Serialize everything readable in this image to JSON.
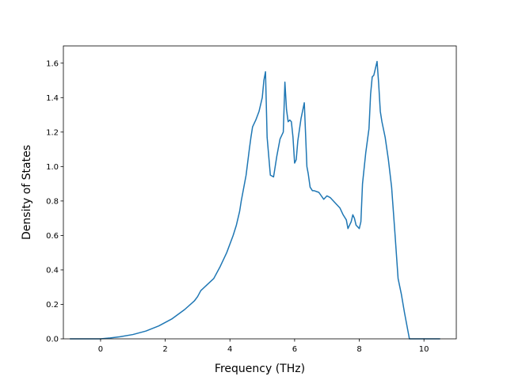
{
  "chart_data": {
    "type": "line",
    "title": "",
    "xlabel": "Frequency (THz)",
    "ylabel": "Density of States",
    "xlim": [
      -1.15,
      11.0
    ],
    "ylim": [
      0,
      1.7
    ],
    "xticks": [
      0,
      2,
      4,
      6,
      8,
      10
    ],
    "yticks": [
      0.0,
      0.2,
      0.4,
      0.6,
      0.8,
      1.0,
      1.2,
      1.4,
      1.6
    ],
    "xtick_labels": [
      "0",
      "2",
      "4",
      "6",
      "8",
      "10"
    ],
    "ytick_labels": [
      "0.0",
      "0.2",
      "0.4",
      "0.6",
      "0.8",
      "1.0",
      "1.2",
      "1.4",
      "1.6"
    ],
    "grid": false,
    "legend": "none",
    "series": [
      {
        "color": "#1f77b4",
        "x": [
          -0.95,
          -0.5,
          0.0,
          0.3,
          0.6,
          1.0,
          1.4,
          1.8,
          2.2,
          2.6,
          2.9,
          3.0,
          3.1,
          3.3,
          3.5,
          3.7,
          3.9,
          4.1,
          4.2,
          4.3,
          4.35,
          4.4,
          4.5,
          4.6,
          4.65,
          4.7,
          4.8,
          4.9,
          5.0,
          5.05,
          5.1,
          5.15,
          5.25,
          5.35,
          5.45,
          5.55,
          5.65,
          5.7,
          5.75,
          5.8,
          5.85,
          5.9,
          5.95,
          6.0,
          6.05,
          6.1,
          6.2,
          6.3,
          6.38,
          6.42,
          6.48,
          6.55,
          6.6,
          6.75,
          6.9,
          7.0,
          7.1,
          7.2,
          7.3,
          7.4,
          7.5,
          7.6,
          7.65,
          7.7,
          7.75,
          7.8,
          7.85,
          7.9,
          7.95,
          8.0,
          8.05,
          8.1,
          8.2,
          8.3,
          8.35,
          8.4,
          8.45,
          8.5,
          8.55,
          8.6,
          8.65,
          8.7,
          8.8,
          8.9,
          9.0,
          9.1,
          9.2,
          9.3,
          9.4,
          9.5,
          9.55,
          9.6,
          10.0,
          10.5
        ],
        "y": [
          0.0,
          0.0,
          0.0,
          0.005,
          0.012,
          0.025,
          0.045,
          0.075,
          0.115,
          0.17,
          0.22,
          0.245,
          0.28,
          0.315,
          0.35,
          0.42,
          0.5,
          0.6,
          0.66,
          0.74,
          0.8,
          0.85,
          0.95,
          1.1,
          1.17,
          1.23,
          1.27,
          1.32,
          1.4,
          1.5,
          1.55,
          1.17,
          0.95,
          0.94,
          1.06,
          1.16,
          1.2,
          1.49,
          1.33,
          1.26,
          1.27,
          1.26,
          1.17,
          1.02,
          1.04,
          1.15,
          1.28,
          1.37,
          1.0,
          0.96,
          0.88,
          0.86,
          0.86,
          0.85,
          0.81,
          0.83,
          0.82,
          0.8,
          0.78,
          0.76,
          0.72,
          0.69,
          0.64,
          0.66,
          0.68,
          0.72,
          0.7,
          0.66,
          0.65,
          0.64,
          0.68,
          0.9,
          1.08,
          1.22,
          1.42,
          1.52,
          1.53,
          1.57,
          1.61,
          1.48,
          1.32,
          1.26,
          1.17,
          1.04,
          0.88,
          0.62,
          0.35,
          0.26,
          0.15,
          0.05,
          0.0,
          0.0,
          0.0,
          0.0
        ]
      }
    ]
  }
}
